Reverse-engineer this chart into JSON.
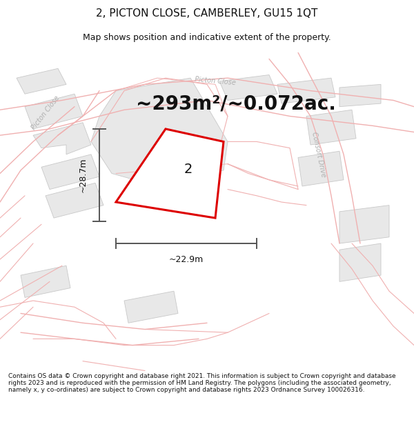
{
  "title": "2, PICTON CLOSE, CAMBERLEY, GU15 1QT",
  "subtitle": "Map shows position and indicative extent of the property.",
  "area_text": "~293m²/~0.072ac.",
  "dim_width": "~22.9m",
  "dim_height": "~28.7m",
  "plot_number": "2",
  "footer": "Contains OS data © Crown copyright and database right 2021. This information is subject to Crown copyright and database rights 2023 and is reproduced with the permission of HM Land Registry. The polygons (including the associated geometry, namely x, y co-ordinates) are subject to Crown copyright and database rights 2023 Ordnance Survey 100026316.",
  "map_bg": "#ffffff",
  "road_line_color": "#f0b0b0",
  "building_color": "#e8e8e8",
  "building_edge": "#c8c8c8",
  "plot_outline_color": "#dd0000",
  "plot_fill": "#ffffff",
  "dim_line_color": "#555555",
  "road_label_color": "#aaaaaa",
  "title_fontsize": 11,
  "subtitle_fontsize": 9,
  "area_fontsize": 20,
  "plot_label_fontsize": 14,
  "footer_fontsize": 6.5
}
